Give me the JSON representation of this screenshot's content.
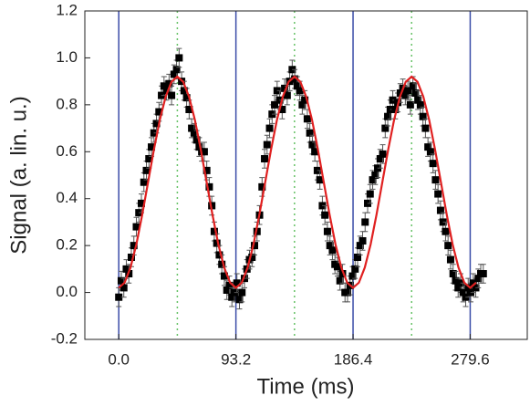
{
  "chart_data": {
    "type": "scatter",
    "x_label": "Time (ms)",
    "y_label": "Signal (a. lin. u.)",
    "xlim": [
      -27,
      325
    ],
    "ylim": [
      -0.2,
      1.2
    ],
    "xticks": [
      {
        "value": 0,
        "label": "0.0"
      },
      93.2,
      186.4,
      279.6
    ],
    "yticks": [
      {
        "value": -0.2,
        "label": "-0.2"
      },
      {
        "value": 0,
        "label": "0.0"
      },
      0.2,
      0.4,
      0.6,
      0.8,
      {
        "value": 1,
        "label": "1.0"
      },
      1.2
    ],
    "vlines": [
      {
        "x": [
          0,
          93.2,
          186.4,
          279.6
        ],
        "color": "#3a4ca8",
        "style": "solid"
      },
      {
        "x": [
          46.6,
          139.8,
          233
        ],
        "color": "#66c266",
        "style": "dotted"
      }
    ],
    "series": [
      {
        "kind": "points",
        "color": "#000000",
        "error": 0.04,
        "x": [
          0,
          2,
          4,
          6,
          8,
          10,
          12,
          14,
          16,
          18,
          20,
          22,
          24,
          26,
          28,
          30,
          32,
          34,
          36,
          38,
          40,
          42,
          44,
          46,
          48,
          50,
          52,
          54,
          56,
          58,
          60,
          62,
          64,
          66,
          68,
          70,
          72,
          74,
          76,
          78,
          80,
          82,
          84,
          86,
          88,
          90,
          92,
          94,
          96,
          98,
          100,
          102,
          104,
          106,
          108,
          110,
          112,
          114,
          116,
          118,
          120,
          122,
          124,
          126,
          128,
          130,
          132,
          134,
          136,
          138,
          140,
          142,
          144,
          146,
          148,
          150,
          152,
          154,
          156,
          158,
          160,
          162,
          164,
          166,
          168,
          170,
          172,
          174,
          176,
          178,
          180,
          182,
          184,
          186,
          188,
          190,
          192,
          194,
          196,
          198,
          200,
          202,
          204,
          206,
          208,
          210,
          212,
          214,
          216,
          218,
          220,
          222,
          224,
          226,
          228,
          230,
          232,
          234,
          236,
          238,
          240,
          242,
          244,
          246,
          248,
          250,
          252,
          254,
          256,
          258,
          260,
          262,
          264,
          266,
          268,
          270,
          272,
          274,
          276,
          278,
          280,
          282,
          284,
          286,
          288,
          290
        ],
        "values": [
          -0.02,
          0.05,
          0.02,
          0.1,
          0.08,
          0.15,
          0.2,
          0.28,
          0.34,
          0.38,
          0.47,
          0.52,
          0.57,
          0.62,
          0.68,
          0.72,
          0.77,
          0.84,
          0.88,
          0.86,
          0.89,
          0.84,
          0.93,
          0.95,
          1.0,
          0.9,
          0.86,
          0.83,
          0.78,
          0.7,
          0.68,
          0.65,
          0.62,
          0.6,
          0.6,
          0.52,
          0.45,
          0.37,
          0.26,
          0.21,
          0.16,
          0.12,
          0.07,
          0.01,
          0.03,
          -0.02,
          0.0,
          0.04,
          -0.03,
          0.0,
          0.06,
          0.1,
          0.14,
          0.15,
          0.2,
          0.26,
          0.33,
          0.45,
          0.57,
          0.63,
          0.7,
          0.76,
          0.8,
          0.86,
          0.82,
          0.78,
          0.87,
          0.84,
          0.9,
          0.95,
          0.91,
          0.88,
          0.86,
          0.8,
          0.82,
          0.74,
          0.68,
          0.63,
          0.6,
          0.52,
          0.48,
          0.37,
          0.33,
          0.26,
          0.2,
          0.18,
          0.12,
          0.11,
          0.05,
          0.08,
          0.0,
          0.0,
          0.03,
          0.07,
          0.1,
          0.15,
          0.2,
          0.22,
          0.3,
          0.38,
          0.42,
          0.48,
          0.5,
          0.53,
          0.57,
          0.59,
          0.7,
          0.75,
          0.78,
          0.82,
          0.78,
          0.81,
          0.85,
          0.87,
          0.84,
          0.86,
          0.8,
          0.88,
          0.85,
          0.82,
          0.8,
          0.75,
          0.7,
          0.62,
          0.6,
          0.55,
          0.48,
          0.42,
          0.35,
          0.3,
          0.26,
          0.2,
          0.14,
          0.08,
          0.05,
          0.02,
          0.04,
          0.0,
          -0.02,
          0.02,
          0.0,
          0.04,
          0.02,
          0.06,
          0.08,
          0.08
        ]
      },
      {
        "kind": "line",
        "color": "#e02020",
        "x": [
          0,
          4.66,
          9.32,
          13.98,
          18.64,
          23.3,
          27.96,
          32.62,
          37.28,
          41.94,
          46.6,
          51.26,
          55.92,
          60.58,
          65.24,
          69.9,
          74.56,
          79.22,
          83.88,
          88.54,
          93.2,
          97.86,
          102.52,
          107.18,
          111.84,
          116.5,
          121.16,
          125.82,
          130.48,
          135.14,
          139.8,
          144.46,
          149.12,
          153.78,
          158.44,
          163.1,
          167.76,
          172.42,
          177.08,
          181.74,
          186.4,
          191.06,
          195.72,
          200.38,
          205.04,
          209.7,
          214.36,
          219.02,
          223.68,
          228.34,
          233,
          237.66,
          242.32,
          246.98,
          251.64,
          256.3,
          260.96,
          265.62,
          270.28,
          274.94,
          279.6,
          284.26
        ],
        "values": [
          0.02,
          0.042,
          0.106,
          0.205,
          0.331,
          0.47,
          0.609,
          0.735,
          0.834,
          0.898,
          0.92,
          0.898,
          0.834,
          0.735,
          0.609,
          0.47,
          0.331,
          0.205,
          0.106,
          0.042,
          0.02,
          0.042,
          0.106,
          0.205,
          0.331,
          0.47,
          0.609,
          0.735,
          0.834,
          0.898,
          0.92,
          0.898,
          0.834,
          0.735,
          0.609,
          0.47,
          0.331,
          0.205,
          0.106,
          0.042,
          0.02,
          0.042,
          0.106,
          0.205,
          0.331,
          0.47,
          0.609,
          0.735,
          0.834,
          0.898,
          0.92,
          0.898,
          0.834,
          0.735,
          0.609,
          0.47,
          0.331,
          0.205,
          0.106,
          0.042,
          0.02,
          0.042
        ]
      }
    ]
  }
}
